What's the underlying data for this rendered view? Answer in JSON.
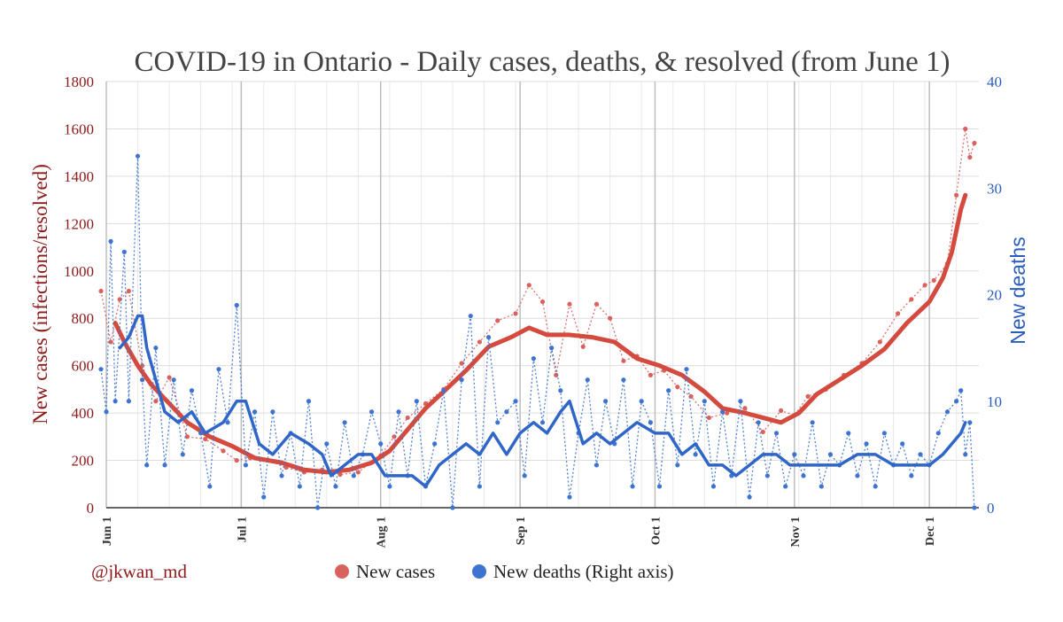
{
  "chart_data": {
    "type": "line",
    "title": "COVID-19 in Ontario - Daily cases, deaths, & resolved (from June 1)",
    "ylabel": "New cases (infections/resolved)",
    "y2label": "New deaths",
    "ylim": [
      0,
      1800
    ],
    "y2lim": [
      0,
      40
    ],
    "yticks": [
      0,
      200,
      400,
      600,
      800,
      1000,
      1200,
      1400,
      1600,
      1800
    ],
    "y2ticks": [
      0,
      10,
      20,
      30,
      40
    ],
    "x_start": "2020-06-01",
    "x_end": "2020-12-12",
    "xticks": [
      {
        "date": "2020-06-01",
        "label": "Jun 1"
      },
      {
        "date": "2020-07-01",
        "label": "Jul 1"
      },
      {
        "date": "2020-08-01",
        "label": "Aug 1"
      },
      {
        "date": "2020-09-01",
        "label": "Sep 1"
      },
      {
        "date": "2020-10-01",
        "label": "Oct 1"
      },
      {
        "date": "2020-11-01",
        "label": "Nov 1"
      },
      {
        "date": "2020-12-01",
        "label": "Dec 1"
      }
    ],
    "grid": true,
    "legend_position": "bottom",
    "credit": "@jkwan_md",
    "series": [
      {
        "name": "New cases",
        "axis": "left",
        "color": "#D9625E",
        "trend_color": "#D44A3E",
        "daily": [
          [
            "2020-05-30",
            915
          ],
          [
            "2020-06-02",
            700
          ],
          [
            "2020-06-04",
            880
          ],
          [
            "2020-06-06",
            915
          ],
          [
            "2020-06-09",
            600
          ],
          [
            "2020-06-12",
            450
          ],
          [
            "2020-06-15",
            550
          ],
          [
            "2020-06-19",
            300
          ],
          [
            "2020-06-23",
            290
          ],
          [
            "2020-06-27",
            240
          ],
          [
            "2020-06-30",
            200
          ],
          [
            "2020-07-03",
            210
          ],
          [
            "2020-07-07",
            200
          ],
          [
            "2020-07-11",
            170
          ],
          [
            "2020-07-15",
            150
          ],
          [
            "2020-07-19",
            160
          ],
          [
            "2020-07-23",
            140
          ],
          [
            "2020-07-27",
            150
          ],
          [
            "2020-08-01",
            220
          ],
          [
            "2020-08-04",
            300
          ],
          [
            "2020-08-07",
            380
          ],
          [
            "2020-08-11",
            440
          ],
          [
            "2020-08-15",
            500
          ],
          [
            "2020-08-19",
            610
          ],
          [
            "2020-08-23",
            700
          ],
          [
            "2020-08-27",
            790
          ],
          [
            "2020-08-31",
            820
          ],
          [
            "2020-09-03",
            940
          ],
          [
            "2020-09-06",
            870
          ],
          [
            "2020-09-09",
            560
          ],
          [
            "2020-09-12",
            860
          ],
          [
            "2020-09-15",
            680
          ],
          [
            "2020-09-18",
            860
          ],
          [
            "2020-09-21",
            800
          ],
          [
            "2020-09-24",
            620
          ],
          [
            "2020-09-27",
            640
          ],
          [
            "2020-09-30",
            560
          ],
          [
            "2020-10-03",
            580
          ],
          [
            "2020-10-06",
            510
          ],
          [
            "2020-10-09",
            470
          ],
          [
            "2020-10-13",
            380
          ],
          [
            "2020-10-17",
            400
          ],
          [
            "2020-10-21",
            420
          ],
          [
            "2020-10-25",
            320
          ],
          [
            "2020-10-29",
            410
          ],
          [
            "2020-11-01",
            390
          ],
          [
            "2020-11-04",
            470
          ],
          [
            "2020-11-08",
            500
          ],
          [
            "2020-11-12",
            560
          ],
          [
            "2020-11-16",
            610
          ],
          [
            "2020-11-20",
            700
          ],
          [
            "2020-11-24",
            820
          ],
          [
            "2020-11-27",
            880
          ],
          [
            "2020-11-30",
            940
          ],
          [
            "2020-12-02",
            960
          ],
          [
            "2020-12-05",
            1030
          ],
          [
            "2020-12-07",
            1320
          ],
          [
            "2020-12-09",
            1600
          ],
          [
            "2020-12-10",
            1480
          ],
          [
            "2020-12-11",
            1540
          ]
        ],
        "trend": [
          [
            "2020-06-03",
            780
          ],
          [
            "2020-06-05",
            700
          ],
          [
            "2020-06-08",
            600
          ],
          [
            "2020-06-11",
            520
          ],
          [
            "2020-06-15",
            440
          ],
          [
            "2020-06-19",
            360
          ],
          [
            "2020-06-24",
            300
          ],
          [
            "2020-06-29",
            260
          ],
          [
            "2020-07-04",
            210
          ],
          [
            "2020-07-10",
            190
          ],
          [
            "2020-07-15",
            160
          ],
          [
            "2020-07-20",
            150
          ],
          [
            "2020-07-25",
            160
          ],
          [
            "2020-07-30",
            190
          ],
          [
            "2020-08-03",
            240
          ],
          [
            "2020-08-07",
            330
          ],
          [
            "2020-08-11",
            420
          ],
          [
            "2020-08-15",
            490
          ],
          [
            "2020-08-20",
            580
          ],
          [
            "2020-08-25",
            680
          ],
          [
            "2020-08-30",
            720
          ],
          [
            "2020-09-03",
            760
          ],
          [
            "2020-09-07",
            730
          ],
          [
            "2020-09-12",
            730
          ],
          [
            "2020-09-17",
            720
          ],
          [
            "2020-09-22",
            700
          ],
          [
            "2020-09-27",
            630
          ],
          [
            "2020-10-02",
            600
          ],
          [
            "2020-10-07",
            560
          ],
          [
            "2020-10-12",
            490
          ],
          [
            "2020-10-16",
            420
          ],
          [
            "2020-10-21",
            400
          ],
          [
            "2020-10-25",
            380
          ],
          [
            "2020-10-29",
            360
          ],
          [
            "2020-11-02",
            400
          ],
          [
            "2020-11-06",
            480
          ],
          [
            "2020-11-11",
            540
          ],
          [
            "2020-11-16",
            600
          ],
          [
            "2020-11-21",
            670
          ],
          [
            "2020-11-26",
            780
          ],
          [
            "2020-12-01",
            870
          ],
          [
            "2020-12-04",
            970
          ],
          [
            "2020-12-06",
            1080
          ],
          [
            "2020-12-08",
            1260
          ],
          [
            "2020-12-09",
            1320
          ]
        ]
      },
      {
        "name": "New deaths (Right axis)",
        "axis": "right",
        "color": "#3E74D1",
        "trend_color": "#2F66C8",
        "daily": [
          [
            "2020-05-30",
            13
          ],
          [
            "2020-06-01",
            9
          ],
          [
            "2020-06-02",
            25
          ],
          [
            "2020-06-03",
            10
          ],
          [
            "2020-06-05",
            24
          ],
          [
            "2020-06-06",
            10
          ],
          [
            "2020-06-08",
            33
          ],
          [
            "2020-06-09",
            12
          ],
          [
            "2020-06-10",
            4
          ],
          [
            "2020-06-12",
            15
          ],
          [
            "2020-06-14",
            4
          ],
          [
            "2020-06-16",
            12
          ],
          [
            "2020-06-18",
            5
          ],
          [
            "2020-06-20",
            11
          ],
          [
            "2020-06-22",
            7
          ],
          [
            "2020-06-24",
            2
          ],
          [
            "2020-06-26",
            13
          ],
          [
            "2020-06-28",
            8
          ],
          [
            "2020-06-30",
            19
          ],
          [
            "2020-07-02",
            4
          ],
          [
            "2020-07-04",
            9
          ],
          [
            "2020-07-06",
            1
          ],
          [
            "2020-07-08",
            9
          ],
          [
            "2020-07-10",
            3
          ],
          [
            "2020-07-12",
            7
          ],
          [
            "2020-07-14",
            2
          ],
          [
            "2020-07-16",
            10
          ],
          [
            "2020-07-18",
            0
          ],
          [
            "2020-07-20",
            6
          ],
          [
            "2020-07-22",
            2
          ],
          [
            "2020-07-24",
            8
          ],
          [
            "2020-07-26",
            3
          ],
          [
            "2020-07-28",
            5
          ],
          [
            "2020-07-30",
            9
          ],
          [
            "2020-08-01",
            6
          ],
          [
            "2020-08-03",
            2
          ],
          [
            "2020-08-05",
            9
          ],
          [
            "2020-08-07",
            3
          ],
          [
            "2020-08-09",
            10
          ],
          [
            "2020-08-11",
            2
          ],
          [
            "2020-08-13",
            6
          ],
          [
            "2020-08-15",
            11
          ],
          [
            "2020-08-17",
            0
          ],
          [
            "2020-08-19",
            12
          ],
          [
            "2020-08-21",
            18
          ],
          [
            "2020-08-23",
            2
          ],
          [
            "2020-08-25",
            16
          ],
          [
            "2020-08-27",
            8
          ],
          [
            "2020-08-29",
            9
          ],
          [
            "2020-08-31",
            10
          ],
          [
            "2020-09-02",
            3
          ],
          [
            "2020-09-04",
            14
          ],
          [
            "2020-09-06",
            8
          ],
          [
            "2020-09-08",
            15
          ],
          [
            "2020-09-10",
            11
          ],
          [
            "2020-09-12",
            1
          ],
          [
            "2020-09-14",
            7
          ],
          [
            "2020-09-16",
            12
          ],
          [
            "2020-09-18",
            4
          ],
          [
            "2020-09-20",
            10
          ],
          [
            "2020-09-22",
            6
          ],
          [
            "2020-09-24",
            12
          ],
          [
            "2020-09-26",
            2
          ],
          [
            "2020-09-28",
            10
          ],
          [
            "2020-09-30",
            8
          ],
          [
            "2020-10-02",
            2
          ],
          [
            "2020-10-04",
            11
          ],
          [
            "2020-10-06",
            4
          ],
          [
            "2020-10-08",
            13
          ],
          [
            "2020-10-10",
            5
          ],
          [
            "2020-10-12",
            10
          ],
          [
            "2020-10-14",
            2
          ],
          [
            "2020-10-16",
            9
          ],
          [
            "2020-10-18",
            3
          ],
          [
            "2020-10-20",
            10
          ],
          [
            "2020-10-22",
            1
          ],
          [
            "2020-10-24",
            8
          ],
          [
            "2020-10-26",
            3
          ],
          [
            "2020-10-28",
            7
          ],
          [
            "2020-10-30",
            2
          ],
          [
            "2020-11-01",
            5
          ],
          [
            "2020-11-03",
            3
          ],
          [
            "2020-11-05",
            8
          ],
          [
            "2020-11-07",
            2
          ],
          [
            "2020-11-09",
            5
          ],
          [
            "2020-11-11",
            4
          ],
          [
            "2020-11-13",
            7
          ],
          [
            "2020-11-15",
            3
          ],
          [
            "2020-11-17",
            6
          ],
          [
            "2020-11-19",
            2
          ],
          [
            "2020-11-21",
            7
          ],
          [
            "2020-11-23",
            4
          ],
          [
            "2020-11-25",
            6
          ],
          [
            "2020-11-27",
            3
          ],
          [
            "2020-11-29",
            5
          ],
          [
            "2020-12-01",
            4
          ],
          [
            "2020-12-03",
            7
          ],
          [
            "2020-12-05",
            9
          ],
          [
            "2020-12-07",
            10
          ],
          [
            "2020-12-08",
            11
          ],
          [
            "2020-12-09",
            5
          ],
          [
            "2020-12-10",
            8
          ],
          [
            "2020-12-11",
            0
          ]
        ],
        "trend": [
          [
            "2020-06-04",
            15
          ],
          [
            "2020-06-06",
            16
          ],
          [
            "2020-06-08",
            18
          ],
          [
            "2020-06-09",
            18
          ],
          [
            "2020-06-10",
            15
          ],
          [
            "2020-06-12",
            12
          ],
          [
            "2020-06-14",
            9
          ],
          [
            "2020-06-17",
            8
          ],
          [
            "2020-06-20",
            9
          ],
          [
            "2020-06-23",
            7
          ],
          [
            "2020-06-27",
            8
          ],
          [
            "2020-06-30",
            10
          ],
          [
            "2020-07-02",
            10
          ],
          [
            "2020-07-05",
            6
          ],
          [
            "2020-07-08",
            5
          ],
          [
            "2020-07-12",
            7
          ],
          [
            "2020-07-16",
            6
          ],
          [
            "2020-07-19",
            5
          ],
          [
            "2020-07-21",
            3
          ],
          [
            "2020-07-24",
            4
          ],
          [
            "2020-07-27",
            5
          ],
          [
            "2020-07-30",
            5
          ],
          [
            "2020-08-02",
            3
          ],
          [
            "2020-08-05",
            3
          ],
          [
            "2020-08-08",
            3
          ],
          [
            "2020-08-11",
            2
          ],
          [
            "2020-08-14",
            4
          ],
          [
            "2020-08-17",
            5
          ],
          [
            "2020-08-20",
            6
          ],
          [
            "2020-08-23",
            5
          ],
          [
            "2020-08-26",
            7
          ],
          [
            "2020-08-29",
            5
          ],
          [
            "2020-09-01",
            7
          ],
          [
            "2020-09-04",
            8
          ],
          [
            "2020-09-07",
            7
          ],
          [
            "2020-09-10",
            9
          ],
          [
            "2020-09-12",
            10
          ],
          [
            "2020-09-15",
            6
          ],
          [
            "2020-09-18",
            7
          ],
          [
            "2020-09-21",
            6
          ],
          [
            "2020-09-24",
            7
          ],
          [
            "2020-09-27",
            8
          ],
          [
            "2020-10-01",
            7
          ],
          [
            "2020-10-04",
            7
          ],
          [
            "2020-10-07",
            5
          ],
          [
            "2020-10-10",
            6
          ],
          [
            "2020-10-13",
            4
          ],
          [
            "2020-10-16",
            4
          ],
          [
            "2020-10-19",
            3
          ],
          [
            "2020-10-22",
            4
          ],
          [
            "2020-10-25",
            5
          ],
          [
            "2020-10-28",
            5
          ],
          [
            "2020-10-31",
            4
          ],
          [
            "2020-11-03",
            4
          ],
          [
            "2020-11-07",
            4
          ],
          [
            "2020-11-11",
            4
          ],
          [
            "2020-11-15",
            5
          ],
          [
            "2020-11-19",
            5
          ],
          [
            "2020-11-23",
            4
          ],
          [
            "2020-11-27",
            4
          ],
          [
            "2020-12-01",
            4
          ],
          [
            "2020-12-04",
            5
          ],
          [
            "2020-12-06",
            6
          ],
          [
            "2020-12-08",
            7
          ],
          [
            "2020-12-09",
            8
          ]
        ]
      }
    ]
  }
}
